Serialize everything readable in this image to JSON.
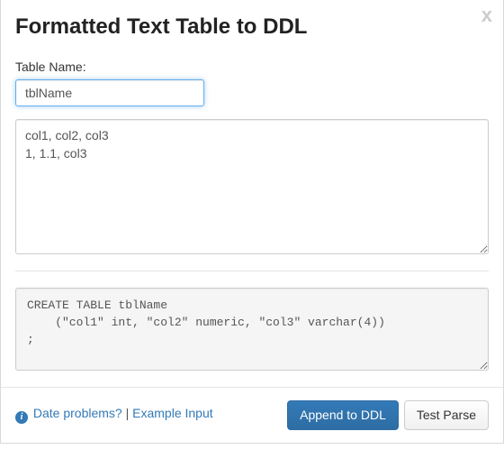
{
  "dialog": {
    "title": "Formatted Text Table to DDL",
    "close_glyph": "x"
  },
  "form": {
    "table_name_label": "Table Name:",
    "table_name_value": "tblName",
    "source_text": "col1, col2, col3\n1, 1.1, col3"
  },
  "output": {
    "ddl_text": "CREATE TABLE tblName\n    (\"col1\" int, \"col2\" numeric, \"col3\" varchar(4))\n;"
  },
  "footer": {
    "info_glyph": "i",
    "date_problems_label": "Date problems?",
    "separator": " | ",
    "example_input_label": "Example Input",
    "append_label": "Append to DDL",
    "test_parse_label": "Test Parse"
  },
  "colors": {
    "primary": "#337ab7",
    "primary_border": "#2e6da4",
    "link": "#337ab7",
    "border": "#cccccc",
    "focus_ring": "#66afe9",
    "code_bg": "#f5f5f5",
    "separator": "#e5e5e5",
    "text": "#333333",
    "muted": "#555555",
    "close": "#cccccc"
  }
}
